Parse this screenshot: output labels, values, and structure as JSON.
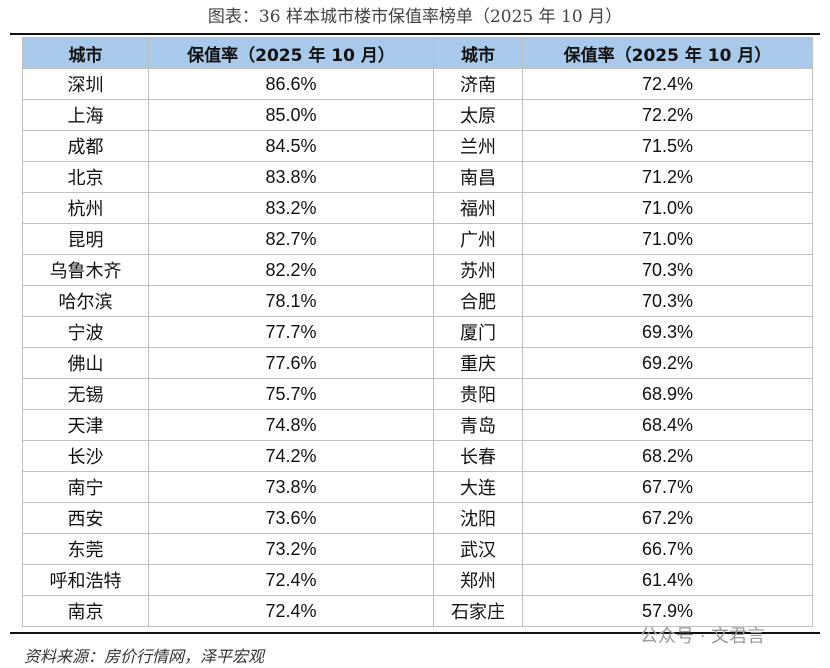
{
  "title": "图表：36 样本城市楼市保值率榜单（2025 年 10 月）",
  "table": {
    "header": [
      "城市",
      "保值率（2025 年 10 月）",
      "城市",
      "保值率（2025 年 10 月）"
    ],
    "rows": [
      [
        "深圳",
        "86.6%",
        "济南",
        "72.4%"
      ],
      [
        "上海",
        "85.0%",
        "太原",
        "72.2%"
      ],
      [
        "成都",
        "84.5%",
        "兰州",
        "71.5%"
      ],
      [
        "北京",
        "83.8%",
        "南昌",
        "71.2%"
      ],
      [
        "杭州",
        "83.2%",
        "福州",
        "71.0%"
      ],
      [
        "昆明",
        "82.7%",
        "广州",
        "71.0%"
      ],
      [
        "乌鲁木齐",
        "82.2%",
        "苏州",
        "70.3%"
      ],
      [
        "哈尔滨",
        "78.1%",
        "合肥",
        "70.3%"
      ],
      [
        "宁波",
        "77.7%",
        "厦门",
        "69.3%"
      ],
      [
        "佛山",
        "77.6%",
        "重庆",
        "69.2%"
      ],
      [
        "无锡",
        "75.7%",
        "贵阳",
        "68.9%"
      ],
      [
        "天津",
        "74.8%",
        "青岛",
        "68.4%"
      ],
      [
        "长沙",
        "74.2%",
        "长春",
        "68.2%"
      ],
      [
        "南宁",
        "73.8%",
        "大连",
        "67.7%"
      ],
      [
        "西安",
        "73.6%",
        "沈阳",
        "67.2%"
      ],
      [
        "东莞",
        "73.2%",
        "武汉",
        "66.7%"
      ],
      [
        "呼和浩特",
        "72.4%",
        "郑州",
        "61.4%"
      ],
      [
        "南京",
        "72.4%",
        "石家庄",
        "57.9%"
      ]
    ]
  },
  "source": "资料来源：房价行情网，泽平宏观",
  "watermark": "公众号 · 文君言"
}
